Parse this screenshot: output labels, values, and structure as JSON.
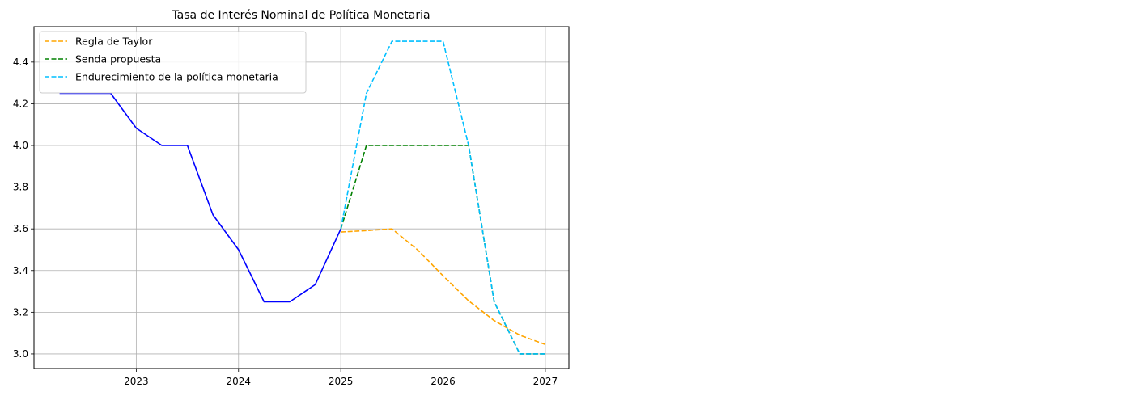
{
  "chart_data": {
    "type": "line",
    "title": "Tasa de Interés Nominal de Política Monetaria",
    "xlabel": "",
    "ylabel": "",
    "xlim": [
      2022.0,
      2027.23
    ],
    "ylim": [
      2.93,
      4.57
    ],
    "x_ticks": [
      2023,
      2024,
      2025,
      2026,
      2027
    ],
    "x_tick_labels": [
      "2023",
      "2024",
      "2025",
      "2026",
      "2027"
    ],
    "y_ticks": [
      3.0,
      3.2,
      3.4,
      3.6,
      3.8,
      4.0,
      4.2,
      4.4
    ],
    "y_tick_labels": [
      "3.0",
      "3.2",
      "3.4",
      "3.6",
      "3.8",
      "4.0",
      "4.2",
      "4.4"
    ],
    "grid": true,
    "legend_position": "top-left",
    "series": [
      {
        "name": "",
        "color": "#0000ff",
        "style": "solid",
        "x": [
          2022.25,
          2022.5,
          2022.75,
          2023.0,
          2023.25,
          2023.5,
          2023.75,
          2024.0,
          2024.25,
          2024.5,
          2024.75,
          2025.0
        ],
        "y": [
          4.25,
          4.25,
          4.25,
          4.083,
          4.0,
          4.0,
          3.667,
          3.5,
          3.25,
          3.25,
          3.333,
          3.6
        ]
      },
      {
        "name": "Regla de Taylor",
        "color": "#ffa500",
        "style": "dashed",
        "x": [
          2025.0,
          2025.25,
          2025.5,
          2025.75,
          2026.0,
          2026.25,
          2026.5,
          2026.75,
          2027.0
        ],
        "y": [
          3.585,
          3.592,
          3.6,
          3.5,
          3.375,
          3.255,
          3.16,
          3.09,
          3.045
        ]
      },
      {
        "name": "Senda propuesta",
        "color": "#008000",
        "style": "dashed",
        "x": [
          2025.0,
          2025.25,
          2025.5,
          2025.75,
          2026.0,
          2026.25,
          2026.5,
          2026.75,
          2027.0
        ],
        "y": [
          3.6,
          4.0,
          4.0,
          4.0,
          4.0,
          4.0,
          3.25,
          3.0,
          3.0
        ]
      },
      {
        "name": "Endurecimiento de la política monetaria",
        "color": "#00bfff",
        "style": "dashed",
        "x": [
          2025.0,
          2025.25,
          2025.5,
          2025.75,
          2026.0,
          2026.25,
          2026.5,
          2026.75,
          2027.0
        ],
        "y": [
          3.6,
          4.25,
          4.5,
          4.5,
          4.5,
          4.0,
          3.25,
          3.0,
          3.0
        ]
      }
    ]
  }
}
